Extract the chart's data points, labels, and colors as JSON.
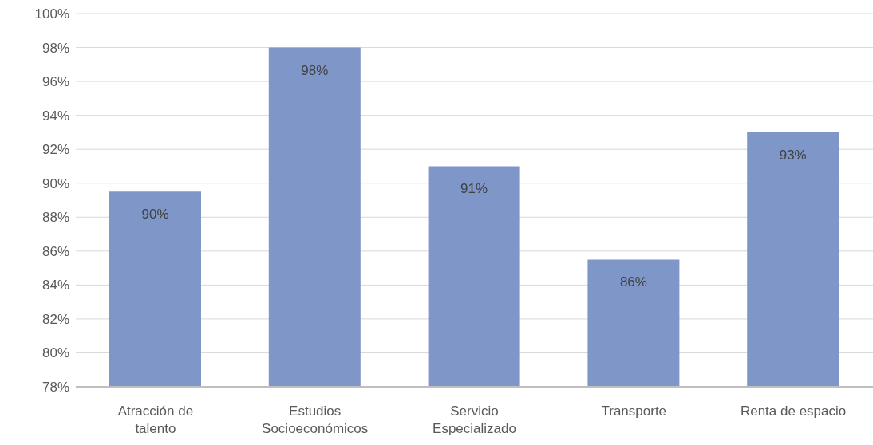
{
  "chart_data": {
    "type": "bar",
    "categories": [
      "Atracción de talento",
      "Estudios Socioeconómicos",
      "Servicio Especializado",
      "Transporte",
      "Renta de espacio"
    ],
    "values": [
      89.5,
      98,
      91,
      85.5,
      93
    ],
    "value_labels": [
      "90%",
      "98%",
      "91%",
      "86%",
      "93%"
    ],
    "color": "#7f96c8",
    "ylim": [
      78,
      100
    ],
    "yticks": [
      {
        "value": 78,
        "label": "78%"
      },
      {
        "value": 80,
        "label": "80%"
      },
      {
        "value": 82,
        "label": "82%"
      },
      {
        "value": 84,
        "label": "84%"
      },
      {
        "value": 86,
        "label": "86%"
      },
      {
        "value": 88,
        "label": "88%"
      },
      {
        "value": 90,
        "label": "90%"
      },
      {
        "value": 92,
        "label": "92%"
      },
      {
        "value": 94,
        "label": "94%"
      },
      {
        "value": 96,
        "label": "96%"
      },
      {
        "value": 98,
        "label": "98%"
      },
      {
        "value": 100,
        "label": "100%"
      }
    ],
    "grid": "y"
  }
}
